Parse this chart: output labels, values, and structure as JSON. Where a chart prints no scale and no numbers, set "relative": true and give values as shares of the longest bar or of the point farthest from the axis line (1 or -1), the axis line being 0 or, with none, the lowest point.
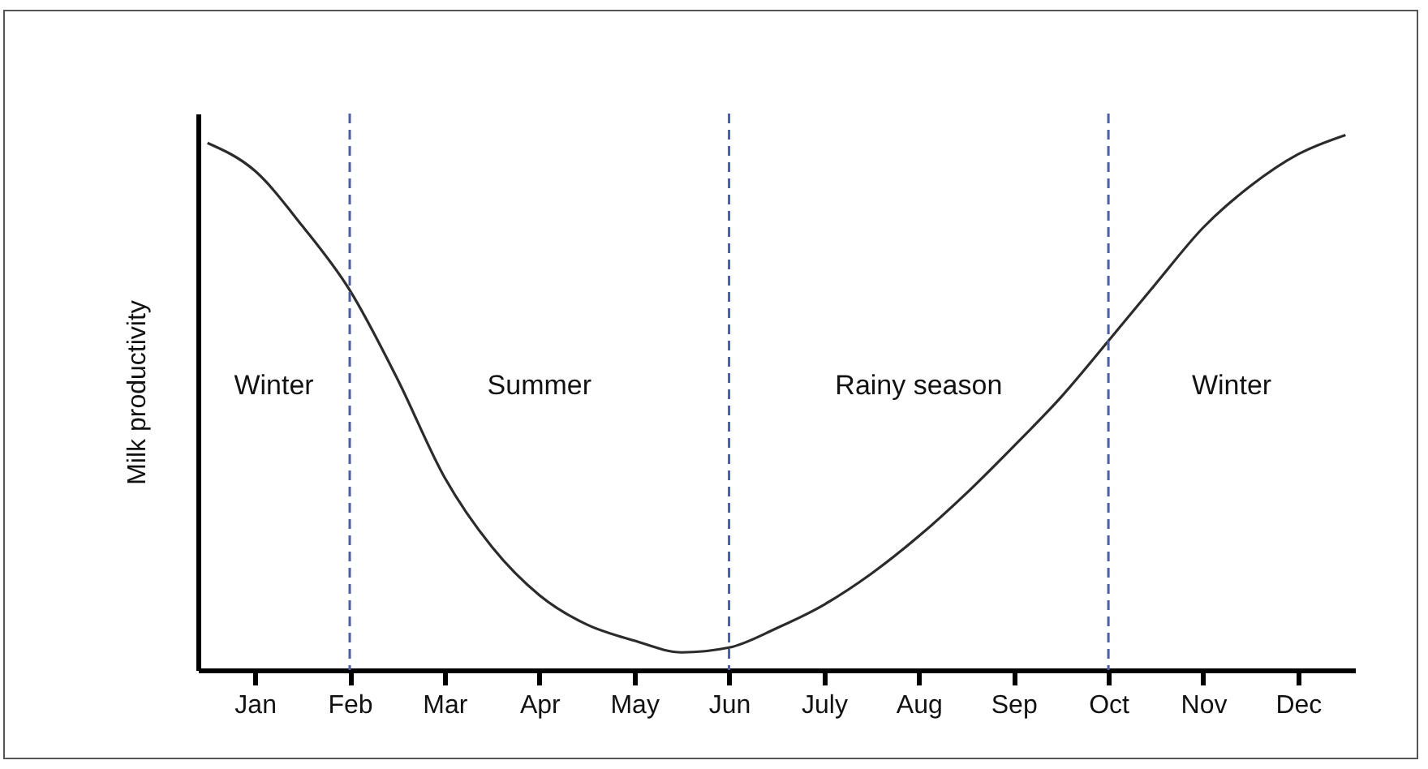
{
  "chart_data": {
    "type": "line",
    "relative": true,
    "ylabel": "Milk productivity",
    "color": "#2b2b2b",
    "categories": [
      null,
      "Jan",
      null,
      "Feb",
      null,
      "Mar",
      null,
      "Apr",
      null,
      "May",
      null,
      "Jun",
      null,
      "July",
      null,
      "Aug",
      null,
      "Sep",
      null,
      "Oct",
      null,
      "Nov",
      null,
      "Dec",
      null
    ],
    "values": [
      0.985,
      0.933,
      0.83,
      0.71,
      0.545,
      0.36,
      0.23,
      0.14,
      0.085,
      0.055,
      0.033,
      0.042,
      0.078,
      0.122,
      0.18,
      0.25,
      0.33,
      0.418,
      0.51,
      0.615,
      0.722,
      0.827,
      0.905,
      0.964,
      1.0
    ],
    "ref_lines": [
      {
        "axis": "x",
        "value": "Feb",
        "color": "#4a5fa8",
        "line_style": "dashed"
      },
      {
        "axis": "x",
        "value": "Jun",
        "color": "#4a5fa8",
        "line_style": "dashed"
      },
      {
        "axis": "x",
        "value": "Oct",
        "color": "#4a5fa8",
        "line_style": "dashed"
      }
    ],
    "annotations": [
      "Winter",
      "Summer",
      "Rainy season",
      "Winter"
    ],
    "grid": false,
    "marker": "none",
    "line_style": "solid"
  }
}
